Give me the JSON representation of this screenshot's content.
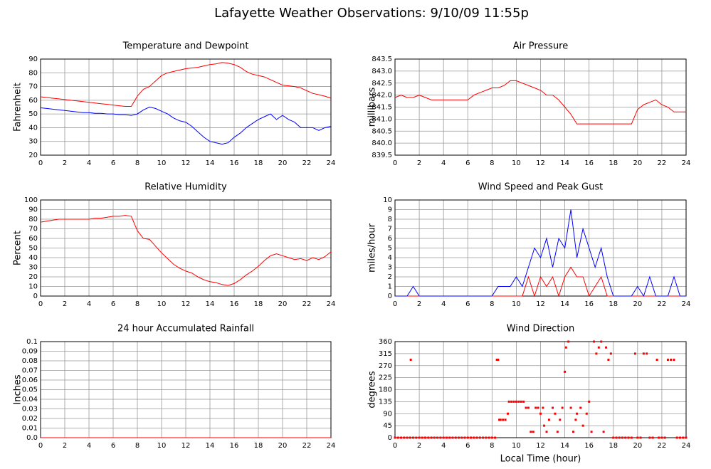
{
  "title": "Lafayette Weather Observations: 9/10/09 11:55p",
  "chart_data": [
    {
      "type": "line",
      "title": "Temperature and Dewpoint",
      "ylabel": "Fahrenheit",
      "x": [
        0,
        0.5,
        1,
        1.5,
        2,
        2.5,
        3,
        3.5,
        4,
        4.5,
        5,
        5.5,
        6,
        6.5,
        7,
        7.5,
        8,
        8.5,
        9,
        9.5,
        10,
        10.5,
        11,
        11.5,
        12,
        12.5,
        13,
        13.5,
        14,
        14.5,
        15,
        15.5,
        16,
        16.5,
        17,
        17.5,
        18,
        18.5,
        19,
        19.5,
        20,
        20.5,
        21,
        21.5,
        22,
        22.5,
        23,
        23.5,
        24
      ],
      "series": [
        {
          "color": "#ff0000",
          "values": [
            62.5,
            62,
            61.5,
            61,
            60.5,
            60,
            59.5,
            59,
            58.5,
            58,
            57.5,
            57,
            56.5,
            56,
            55.5,
            55.5,
            63,
            68,
            70,
            74,
            78,
            80,
            81,
            82,
            83,
            83.5,
            84,
            85,
            86,
            86.5,
            87.5,
            87,
            86,
            84,
            81,
            79,
            78,
            77,
            75,
            73,
            71,
            70.5,
            70,
            69,
            67,
            65,
            64,
            63,
            61.5
          ]
        },
        {
          "color": "#0000ff",
          "values": [
            54.5,
            54,
            53.5,
            53,
            52.5,
            52,
            51.5,
            51,
            51,
            50.5,
            50.5,
            50,
            50,
            49.5,
            49.5,
            49,
            50,
            53,
            55,
            54,
            52,
            50,
            47,
            45,
            44,
            41,
            37,
            33,
            30,
            29,
            28,
            29,
            33,
            36,
            40,
            43,
            46,
            48,
            50,
            46,
            49,
            46,
            44,
            40,
            40,
            40,
            38,
            40,
            41
          ]
        }
      ],
      "xlim": [
        0,
        24
      ],
      "xticks": [
        0,
        2,
        4,
        6,
        8,
        10,
        12,
        14,
        16,
        18,
        20,
        22,
        24
      ],
      "ylim": [
        20,
        90
      ],
      "yticks": [
        20,
        30,
        40,
        50,
        60,
        70,
        80,
        90
      ],
      "grid": true
    },
    {
      "type": "line",
      "title": "Air Pressure",
      "ylabel": "millibars",
      "x": [
        0,
        0.5,
        1,
        1.5,
        2,
        2.5,
        3,
        3.5,
        4,
        4.5,
        5,
        5.5,
        6,
        6.5,
        7,
        7.5,
        8,
        8.5,
        9,
        9.5,
        10,
        10.5,
        11,
        11.5,
        12,
        12.5,
        13,
        13.5,
        14,
        14.5,
        15,
        15.5,
        16,
        16.5,
        17,
        17.5,
        18,
        18.5,
        19,
        19.5,
        20,
        20.5,
        21,
        21.5,
        22,
        22.5,
        23,
        23.5,
        24
      ],
      "series": [
        {
          "color": "#ff0000",
          "values": [
            841.9,
            842.0,
            841.9,
            841.9,
            842.0,
            841.9,
            841.8,
            841.8,
            841.8,
            841.8,
            841.8,
            841.8,
            841.8,
            842.0,
            842.1,
            842.2,
            842.3,
            842.3,
            842.4,
            842.6,
            842.6,
            842.5,
            842.4,
            842.3,
            842.2,
            842.0,
            842.0,
            841.8,
            841.5,
            841.2,
            840.8,
            840.8,
            840.8,
            840.8,
            840.8,
            840.8,
            840.8,
            840.8,
            840.8,
            840.8,
            841.4,
            841.6,
            841.7,
            841.8,
            841.6,
            841.5,
            841.3,
            841.3,
            841.3
          ]
        }
      ],
      "xlim": [
        0,
        24
      ],
      "xticks": [
        0,
        2,
        4,
        6,
        8,
        10,
        12,
        14,
        16,
        18,
        20,
        22,
        24
      ],
      "ylim": [
        839.5,
        843.5
      ],
      "yticks": [
        839.5,
        {
          "value": 840,
          "label": "840.0"
        },
        840.5,
        {
          "value": 841,
          "label": "841.0"
        },
        841.5,
        {
          "value": 842,
          "label": "842.0"
        },
        842.5,
        {
          "value": 843,
          "label": "843.0"
        },
        843.5
      ],
      "grid": true
    },
    {
      "type": "line",
      "title": "Relative Humidity",
      "ylabel": "Percent",
      "x": [
        0,
        0.5,
        1,
        1.5,
        2,
        2.5,
        3,
        3.5,
        4,
        4.5,
        5,
        5.5,
        6,
        6.5,
        7,
        7.5,
        8,
        8.5,
        9,
        9.5,
        10,
        10.5,
        11,
        11.5,
        12,
        12.5,
        13,
        13.5,
        14,
        14.5,
        15,
        15.5,
        16,
        16.5,
        17,
        17.5,
        18,
        18.5,
        19,
        19.5,
        20,
        20.5,
        21,
        21.5,
        22,
        22.5,
        23,
        23.5,
        24
      ],
      "series": [
        {
          "color": "#ff0000",
          "values": [
            77,
            78,
            79,
            80,
            80,
            80,
            80,
            80,
            80,
            81,
            81,
            82,
            83,
            83,
            84,
            83,
            68,
            60,
            59,
            52,
            45,
            39,
            33,
            29,
            26,
            24,
            20,
            17,
            15,
            14,
            12,
            11,
            13,
            17,
            22,
            26,
            31,
            37,
            42,
            44,
            42,
            40,
            38,
            39,
            37,
            40,
            38,
            41,
            46
          ]
        }
      ],
      "xlim": [
        0,
        24
      ],
      "xticks": [
        0,
        2,
        4,
        6,
        8,
        10,
        12,
        14,
        16,
        18,
        20,
        22,
        24
      ],
      "ylim": [
        0,
        100
      ],
      "yticks": [
        0,
        10,
        20,
        30,
        40,
        50,
        60,
        70,
        80,
        90,
        100
      ],
      "grid": true
    },
    {
      "type": "line",
      "title": "Wind Speed and Peak Gust",
      "ylabel": "miles/hour",
      "x": [
        0,
        0.5,
        1,
        1.5,
        2,
        2.5,
        3,
        3.5,
        4,
        4.5,
        5,
        5.5,
        6,
        6.5,
        7,
        7.5,
        8,
        8.5,
        9,
        9.5,
        10,
        10.5,
        11,
        11.5,
        12,
        12.5,
        13,
        13.5,
        14,
        14.5,
        15,
        15.5,
        16,
        16.5,
        17,
        17.5,
        18,
        18.5,
        19,
        19.5,
        20,
        20.5,
        21,
        21.5,
        22,
        22.5,
        23,
        23.5,
        24
      ],
      "series": [
        {
          "color": "#ff0000",
          "values": [
            0,
            0,
            0,
            0,
            0,
            0,
            0,
            0,
            0,
            0,
            0,
            0,
            0,
            0,
            0,
            0,
            0,
            0,
            0,
            0,
            0,
            0,
            2,
            0,
            2,
            1,
            2,
            0,
            2,
            3,
            2,
            2,
            0,
            1,
            2,
            0,
            0,
            0,
            0,
            0,
            0,
            0,
            0,
            0,
            0,
            0,
            0,
            0,
            0
          ]
        },
        {
          "color": "#0000ff",
          "values": [
            0,
            0,
            0,
            1,
            0,
            0,
            0,
            0,
            0,
            0,
            0,
            0,
            0,
            0,
            0,
            0,
            0,
            1,
            1,
            1,
            2,
            1,
            3,
            5,
            4,
            6,
            3,
            6,
            5,
            9,
            4,
            7,
            5,
            3,
            5,
            2,
            0,
            0,
            0,
            0,
            1,
            0,
            2,
            0,
            0,
            0,
            2,
            0,
            0
          ]
        }
      ],
      "xlim": [
        0,
        24
      ],
      "xticks": [
        0,
        2,
        4,
        6,
        8,
        10,
        12,
        14,
        16,
        18,
        20,
        22,
        24
      ],
      "ylim": [
        0,
        10
      ],
      "yticks": [
        0,
        1,
        2,
        3,
        4,
        5,
        6,
        7,
        8,
        9,
        10
      ],
      "grid": true
    },
    {
      "type": "line",
      "title": "24 hour Accumulated Rainfall",
      "ylabel": "Inches",
      "x": [
        0,
        6,
        12,
        18,
        24
      ],
      "series": [
        {
          "color": "#ff0000",
          "values": [
            0,
            0,
            0,
            0,
            0
          ]
        }
      ],
      "xlim": [
        0,
        24
      ],
      "xticks": [
        0,
        2,
        4,
        6,
        8,
        10,
        12,
        14,
        16,
        18,
        20,
        22,
        24
      ],
      "ylim": [
        0,
        0.1
      ],
      "yticks": [
        {
          "value": 0,
          "label": "0.0"
        },
        0.01,
        0.02,
        0.03,
        0.04,
        0.05,
        0.06,
        0.07,
        0.08,
        0.09,
        0.1
      ],
      "grid": true
    },
    {
      "type": "scatter",
      "title": "Wind Direction",
      "ylabel": "degrees",
      "xlabel": "Local Time (hour)",
      "color": "#ff0000",
      "x": [
        0,
        0.25,
        0.5,
        0.75,
        1,
        1.25,
        1.3,
        1.5,
        1.75,
        2,
        2.25,
        2.5,
        2.75,
        3,
        3.25,
        3.5,
        3.75,
        4,
        4.25,
        4.5,
        4.75,
        5,
        5.25,
        5.5,
        5.75,
        6,
        6.25,
        6.5,
        6.75,
        7,
        7.25,
        7.5,
        7.75,
        8,
        8.25,
        8.4,
        8.5,
        8.6,
        8.7,
        8.9,
        9.1,
        9.3,
        9.4,
        9.6,
        9.8,
        10,
        10.2,
        10.4,
        10.6,
        10.8,
        11,
        11.2,
        11.4,
        11.6,
        11.8,
        12,
        12.2,
        12.3,
        12.5,
        12.7,
        13,
        13.2,
        13.4,
        13.6,
        13.8,
        14,
        14.1,
        14.3,
        14.5,
        14.7,
        14.9,
        15,
        15.3,
        15.5,
        15.8,
        16,
        16.2,
        16.4,
        16.6,
        16.8,
        17,
        17.2,
        17.4,
        17.6,
        17.8,
        18,
        18.25,
        18.5,
        18.75,
        19,
        19.25,
        19.5,
        19.8,
        20,
        20.25,
        20.5,
        20.75,
        21,
        21.25,
        21.6,
        21.75,
        22,
        22.25,
        22.5,
        22.75,
        23,
        23.25,
        23.5,
        23.75,
        24
      ],
      "values": [
        0,
        0,
        0,
        0,
        0,
        0,
        292,
        0,
        0,
        0,
        0,
        0,
        0,
        0,
        0,
        0,
        0,
        0,
        0,
        0,
        0,
        0,
        0,
        0,
        0,
        0,
        0,
        0,
        0,
        0,
        0,
        0,
        0,
        0,
        0,
        292,
        292,
        67,
        67,
        67,
        67,
        90,
        135,
        135,
        135,
        135,
        135,
        135,
        135,
        112,
        112,
        22,
        22,
        112,
        112,
        90,
        112,
        45,
        22,
        67,
        112,
        90,
        22,
        67,
        112,
        247,
        338,
        360,
        112,
        22,
        67,
        90,
        112,
        45,
        90,
        135,
        22,
        360,
        315,
        338,
        360,
        22,
        338,
        292,
        315,
        0,
        0,
        0,
        0,
        0,
        0,
        0,
        315,
        0,
        0,
        315,
        315,
        0,
        0,
        292,
        0,
        0,
        0,
        292,
        292,
        292,
        0,
        0,
        0,
        0
      ],
      "xlim": [
        0,
        24
      ],
      "xticks": [
        0,
        2,
        4,
        6,
        8,
        10,
        12,
        14,
        16,
        18,
        20,
        22,
        24
      ],
      "ylim": [
        0,
        360
      ],
      "yticks": [
        0,
        45,
        90,
        135,
        180,
        225,
        270,
        315,
        360
      ],
      "grid": true
    }
  ]
}
